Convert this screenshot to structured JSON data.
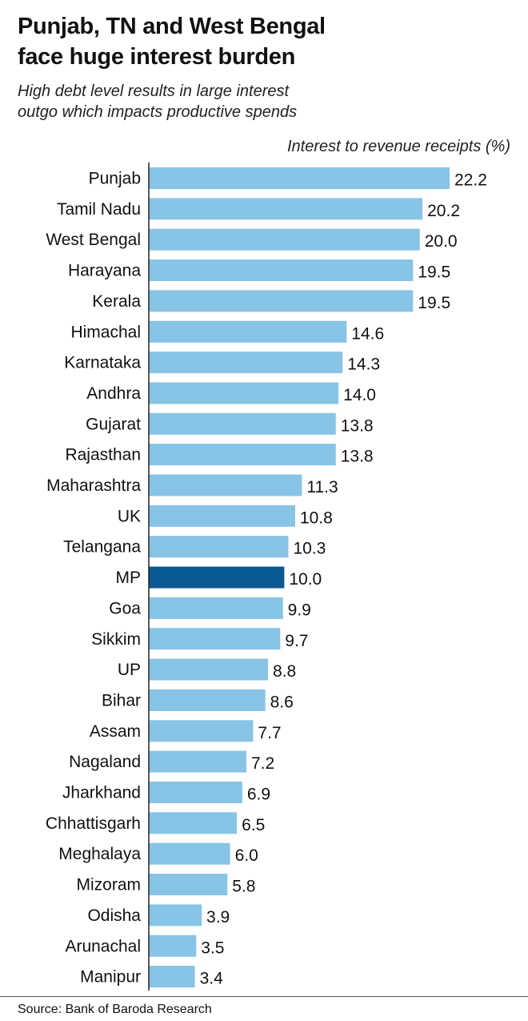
{
  "header": {
    "title_line1": "Punjab, TN and West Bengal",
    "title_line2": "face huge interest burden",
    "subtitle_line1": "High debt level results in large interest",
    "subtitle_line2": "outgo which impacts productive spends"
  },
  "footer": {
    "source": "Source: Bank of Baroda Research"
  },
  "colors": {
    "bar": "#87C4E6",
    "highlight_bar": "#0A5A93",
    "text": "#111111"
  },
  "chart_data": {
    "type": "bar",
    "orientation": "horizontal",
    "title": "Punjab, TN and West Bengal face huge interest burden",
    "subtitle": "High debt level results in large interest outgo which impacts productive spends",
    "xlabel": "Interest to revenue receipts (%)",
    "ylabel": "",
    "categories": [
      "Punjab",
      "Tamil Nadu",
      "West Bengal",
      "Harayana",
      "Kerala",
      "Himachal",
      "Karnataka",
      "Andhra",
      "Gujarat",
      "Rajasthan",
      "Maharashtra",
      "UK",
      "Telangana",
      "MP",
      "Goa",
      "Sikkim",
      "UP",
      "Bihar",
      "Assam",
      "Nagaland",
      "Jharkhand",
      "Chhattisgarh",
      "Meghalaya",
      "Mizoram",
      "Odisha",
      "Arunachal",
      "Manipur"
    ],
    "values": [
      22.2,
      20.2,
      20.0,
      19.5,
      19.5,
      14.6,
      14.3,
      14.0,
      13.8,
      13.8,
      11.3,
      10.8,
      10.3,
      10.0,
      9.9,
      9.7,
      8.8,
      8.6,
      7.7,
      7.2,
      6.9,
      6.5,
      6.0,
      5.8,
      3.9,
      3.5,
      3.4
    ],
    "value_labels": [
      "22.2",
      "20.2",
      "20.0",
      "19.5",
      "19.5",
      "14.6",
      "14.3",
      "14.0",
      "13.8",
      "13.8",
      "11.3",
      "10.8",
      "10.3",
      "10.0",
      "9.9",
      "9.7",
      "8.8",
      "8.6",
      "7.7",
      "7.2",
      "6.9",
      "6.5",
      "6.0",
      "5.8",
      "3.9",
      "3.5",
      "3.4"
    ],
    "highlight": "MP",
    "xlim": [
      0,
      22.2
    ],
    "grid": false,
    "legend": "none",
    "source": "Source: Bank of Baroda Research"
  }
}
